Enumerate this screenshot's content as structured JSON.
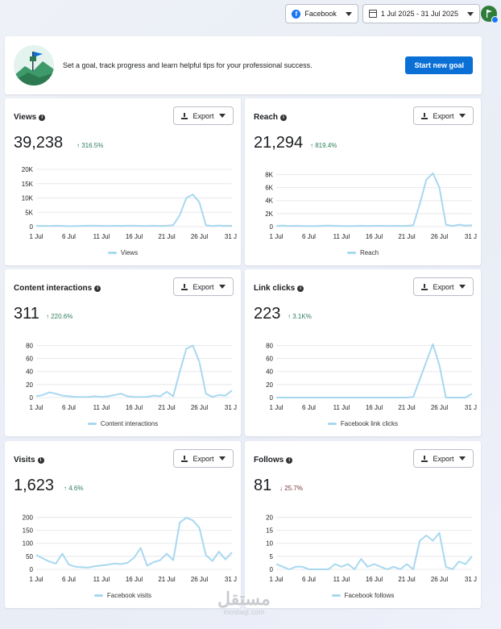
{
  "topbar": {
    "platform": "Facebook",
    "date_range": "1 Jul 2025 - 31 Jul 2025",
    "icons": [
      "facebook-icon",
      "calendar-icon",
      "chevron-down-icon"
    ]
  },
  "goal": {
    "text": "Set a goal, track progress and learn helpful tips for your professional success.",
    "button": "Start new goal"
  },
  "colors": {
    "accent": "#0b70d6",
    "line": "#a8d8f0",
    "up": "#2e7d5b",
    "down": "#7a3b3b"
  },
  "export_label": "Export",
  "watermark": {
    "main": "مستقل",
    "sub": "mostaql.com"
  },
  "chart_data": [
    {
      "id": "views",
      "type": "line",
      "title": "Views",
      "value": "39,238",
      "delta": "316.5%",
      "direction": "up",
      "legend": "Views",
      "yticks": [
        "0",
        "5K",
        "10K",
        "15K",
        "20K"
      ],
      "ylim": [
        0,
        20000
      ],
      "x": [
        1,
        2,
        3,
        4,
        5,
        6,
        7,
        8,
        9,
        10,
        11,
        12,
        13,
        14,
        15,
        16,
        17,
        18,
        19,
        20,
        21,
        22,
        23,
        24,
        25,
        26,
        27,
        28,
        29,
        30,
        31
      ],
      "xticks": [
        "1 Jul",
        "6 Jul",
        "11 Jul",
        "16 Jul",
        "21 Jul",
        "26 Jul",
        "31 J"
      ],
      "values": [
        300,
        250,
        200,
        300,
        250,
        150,
        200,
        250,
        300,
        300,
        250,
        200,
        300,
        250,
        300,
        300,
        250,
        200,
        300,
        250,
        300,
        500,
        4000,
        10000,
        11200,
        8500,
        500,
        200,
        400,
        250,
        300
      ]
    },
    {
      "id": "reach",
      "type": "line",
      "title": "Reach",
      "value": "21,294",
      "delta": "819.4%",
      "direction": "up",
      "legend": "Reach",
      "yticks": [
        "0",
        "2K",
        "4K",
        "6K",
        "8K"
      ],
      "ylim": [
        0,
        8800
      ],
      "x": [
        1,
        2,
        3,
        4,
        5,
        6,
        7,
        8,
        9,
        10,
        11,
        12,
        13,
        14,
        15,
        16,
        17,
        18,
        19,
        20,
        21,
        22,
        23,
        24,
        25,
        26,
        27,
        28,
        29,
        30,
        31
      ],
      "xticks": [
        "1 Jul",
        "6 Jul",
        "11 Jul",
        "16 Jul",
        "21 Jul",
        "26 Jul",
        "31 J"
      ],
      "values": [
        100,
        150,
        100,
        120,
        100,
        80,
        100,
        120,
        150,
        120,
        100,
        80,
        100,
        120,
        100,
        130,
        120,
        100,
        120,
        100,
        130,
        200,
        3500,
        7200,
        8200,
        6000,
        300,
        100,
        300,
        150,
        200
      ]
    },
    {
      "id": "interactions",
      "type": "line",
      "title": "Content interactions",
      "value": "311",
      "delta": "220.6%",
      "direction": "up",
      "legend": "Content interactions",
      "yticks": [
        "0",
        "20",
        "40",
        "60",
        "80"
      ],
      "ylim": [
        0,
        88
      ],
      "x": [
        1,
        2,
        3,
        4,
        5,
        6,
        7,
        8,
        9,
        10,
        11,
        12,
        13,
        14,
        15,
        16,
        17,
        18,
        19,
        20,
        21,
        22,
        23,
        24,
        25,
        26,
        27,
        28,
        29,
        30,
        31
      ],
      "xticks": [
        "1 Jul",
        "6 Jul",
        "11 Jul",
        "16 Jul",
        "21 Jul",
        "26 Jul",
        "31 J"
      ],
      "values": [
        2,
        4,
        8,
        6,
        3,
        2,
        1,
        1,
        1,
        2,
        1,
        2,
        4,
        6,
        2,
        1,
        1,
        1,
        3,
        2,
        9,
        2,
        40,
        75,
        80,
        55,
        6,
        1,
        4,
        3,
        11
      ]
    },
    {
      "id": "links",
      "type": "line",
      "title": "Link clicks",
      "value": "223",
      "delta": "3.1K%",
      "direction": "up",
      "legend": "Facebook link clicks",
      "yticks": [
        "0",
        "20",
        "40",
        "60",
        "80"
      ],
      "ylim": [
        0,
        88
      ],
      "x": [
        1,
        2,
        3,
        4,
        5,
        6,
        7,
        8,
        9,
        10,
        11,
        12,
        13,
        14,
        15,
        16,
        17,
        18,
        19,
        20,
        21,
        22,
        23,
        24,
        25,
        26,
        27,
        28,
        29,
        30,
        31
      ],
      "xticks": [
        "1 Jul",
        "6 Jul",
        "11 Jul",
        "16 Jul",
        "21 Jul",
        "26 Jul",
        "31 J"
      ],
      "values": [
        0,
        0,
        0,
        0,
        0,
        0,
        0,
        0,
        0,
        0,
        0,
        0,
        0,
        0,
        0,
        0,
        0,
        0,
        0,
        0,
        0,
        1,
        28,
        55,
        82,
        50,
        0,
        0,
        0,
        0,
        6
      ]
    },
    {
      "id": "visits",
      "type": "line",
      "title": "Visits",
      "value": "1,623",
      "delta": "4.6%",
      "direction": "up",
      "legend": "Facebook visits",
      "yticks": [
        "0",
        "50",
        "100",
        "150",
        "200"
      ],
      "ylim": [
        0,
        220
      ],
      "x": [
        1,
        2,
        3,
        4,
        5,
        6,
        7,
        8,
        9,
        10,
        11,
        12,
        13,
        14,
        15,
        16,
        17,
        18,
        19,
        20,
        21,
        22,
        23,
        24,
        25,
        26,
        27,
        28,
        29,
        30,
        31
      ],
      "xticks": [
        "1 Jul",
        "6 Jul",
        "11 Jul",
        "16 Jul",
        "21 Jul",
        "26 Jul",
        "31 J"
      ],
      "values": [
        55,
        42,
        30,
        22,
        60,
        18,
        10,
        8,
        7,
        12,
        15,
        18,
        22,
        20,
        25,
        45,
        82,
        14,
        28,
        35,
        60,
        35,
        180,
        198,
        188,
        160,
        55,
        32,
        68,
        38,
        65
      ]
    },
    {
      "id": "follows",
      "type": "line",
      "title": "Follows",
      "value": "81",
      "delta": "25.7%",
      "direction": "down",
      "legend": "Facebook follows",
      "yticks": [
        "0",
        "5",
        "10",
        "15",
        "20"
      ],
      "ylim": [
        0,
        22
      ],
      "x": [
        1,
        2,
        3,
        4,
        5,
        6,
        7,
        8,
        9,
        10,
        11,
        12,
        13,
        14,
        15,
        16,
        17,
        18,
        19,
        20,
        21,
        22,
        23,
        24,
        25,
        26,
        27,
        28,
        29,
        30,
        31
      ],
      "xticks": [
        "1 Jul",
        "6 Jul",
        "11 Jul",
        "16 Jul",
        "21 Jul",
        "26 Jul",
        "31 J"
      ],
      "values": [
        2,
        1,
        0,
        1,
        1,
        0,
        0,
        0,
        0,
        2,
        1,
        2,
        0,
        4,
        1,
        2,
        1,
        0,
        1,
        0,
        2,
        0,
        11,
        13,
        11,
        14,
        1,
        0,
        3,
        2,
        5
      ]
    }
  ]
}
